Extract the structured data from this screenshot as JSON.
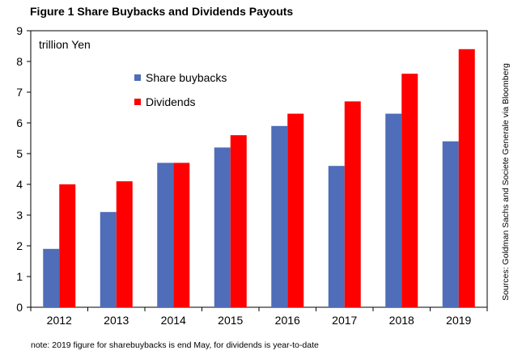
{
  "chart_data": {
    "type": "bar",
    "title": "Figure 1 Share Buybacks and Dividends Payouts",
    "unit_label": "trillion Yen",
    "categories": [
      "2012",
      "2013",
      "2014",
      "2015",
      "2016",
      "2017",
      "2018",
      "2019"
    ],
    "series": [
      {
        "name": "Share buybacks",
        "color": "#4f6db8",
        "values": [
          1.9,
          3.1,
          4.7,
          5.2,
          5.9,
          4.6,
          6.3,
          5.4
        ]
      },
      {
        "name": "Dividends",
        "color": "#ff0000",
        "values": [
          4.0,
          4.1,
          4.7,
          5.6,
          6.3,
          6.7,
          7.6,
          8.4
        ]
      }
    ],
    "ylim": [
      0,
      9
    ],
    "yticks": [
      "0",
      "1",
      "2",
      "3",
      "4",
      "5",
      "6",
      "7",
      "8",
      "9"
    ],
    "grid": false,
    "legend_position": "top-left",
    "note": "note: 2019 figure for sharebuybacks is end May,  for dividends is year-to-date",
    "source": "Sources: Goldman Sachs and Societe Generale via Bloomberg"
  }
}
